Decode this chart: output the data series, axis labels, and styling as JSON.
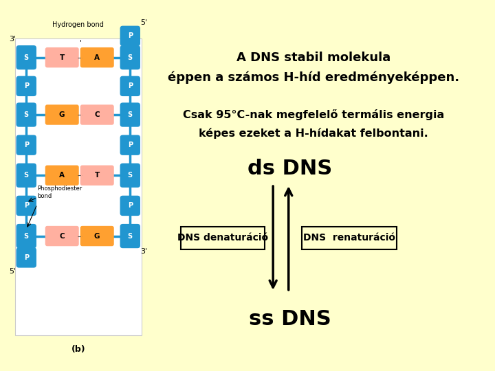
{
  "background_color": "#ffffcc",
  "title_line1": "A DNS stabil molekula",
  "title_line2": "éppen a számos H-híd eredményeképpen.",
  "subtitle_line1": "Csak 95°C-nak megfelelő termális energia",
  "subtitle_line2": "képes ezeket a H-hídakat felbontani.",
  "ds_dns_label": "ds DNS",
  "ss_dns_label": "ss DNS",
  "left_box_label": "DNS denaturáció",
  "right_box_label": "DNS  renaturáció",
  "blue": "#2196d0",
  "pairs": [
    [
      "T",
      "A"
    ],
    [
      "G",
      "C"
    ],
    [
      "A",
      "T"
    ],
    [
      "C",
      "G"
    ]
  ],
  "pair_colors_left": [
    "#ffb0a0",
    "#ffa030",
    "#ffa030",
    "#ffb0a0"
  ],
  "pair_colors_right": [
    "#ffa030",
    "#ffb0a0",
    "#ffb0a0",
    "#ffa030"
  ]
}
